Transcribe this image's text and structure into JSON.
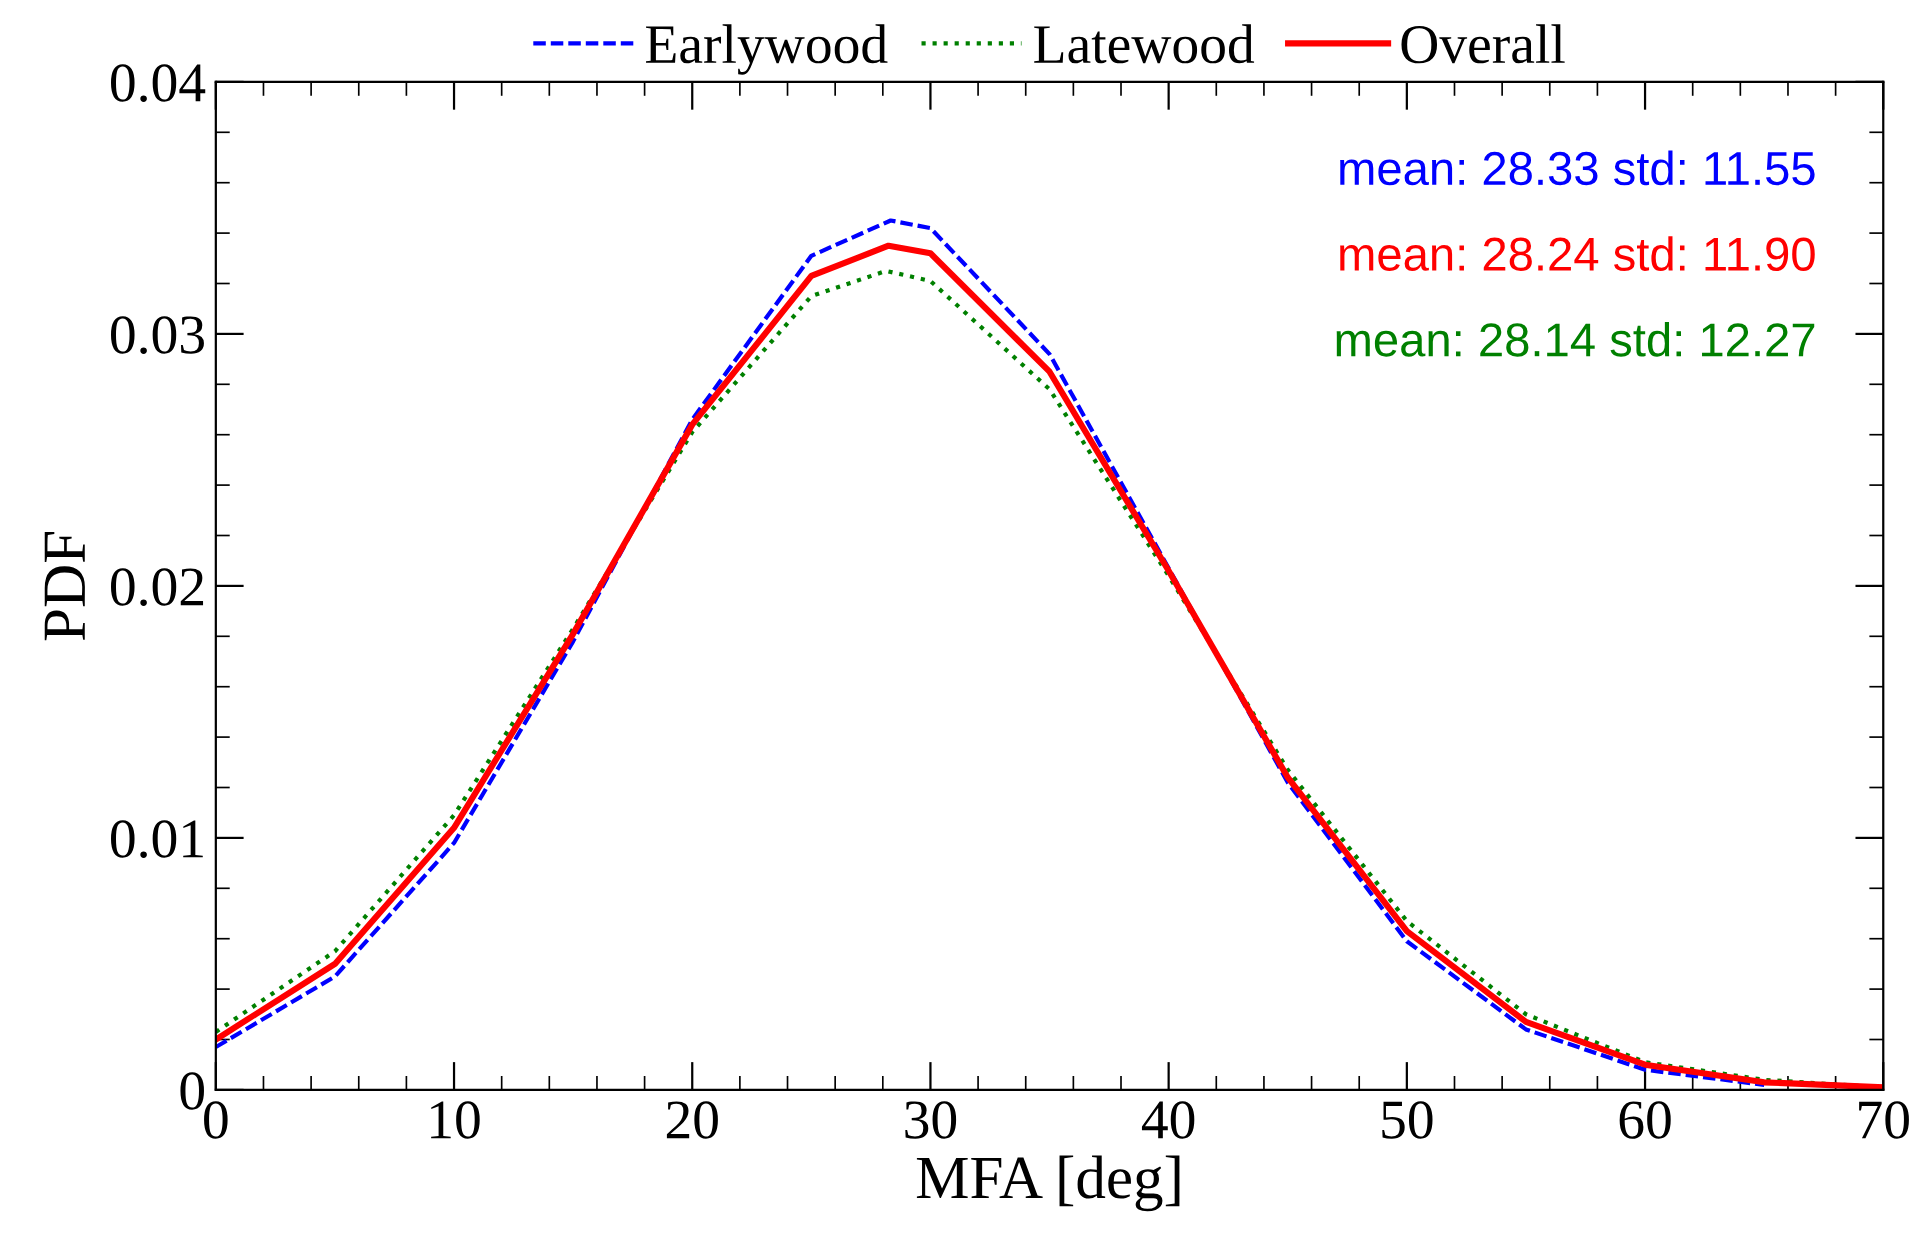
{
  "chart_data": {
    "type": "line",
    "xlabel": "MFA [deg]",
    "ylabel": "PDF",
    "xlim": [
      0,
      70
    ],
    "xticks": [
      0,
      10,
      20,
      30,
      40,
      50,
      60,
      70
    ],
    "ylim": [
      0,
      0.04
    ],
    "yticks": [
      0,
      0.01,
      0.02,
      0.03,
      0.04
    ],
    "legend": "top",
    "grid": false,
    "series": [
      {
        "name": "Earlywood",
        "color": "#0000ff",
        "line_style": "dashed",
        "x": [
          0,
          5,
          10,
          15,
          20,
          25,
          28.33,
          30,
          35,
          40,
          45,
          50,
          55,
          60,
          65
        ],
        "values": [
          0.0017,
          0.0045,
          0.0098,
          0.0178,
          0.0266,
          0.0331,
          0.0345,
          0.0342,
          0.0292,
          0.0207,
          0.0122,
          0.0059,
          0.0024,
          0.0008,
          0.0002
        ]
      },
      {
        "name": "Latewood",
        "color": "#008000",
        "line_style": "dotted",
        "x": [
          0,
          5,
          10,
          15,
          20,
          25,
          28.14,
          30,
          35,
          40,
          45,
          50,
          55,
          60,
          65,
          70
        ],
        "values": [
          0.0023,
          0.0055,
          0.0109,
          0.0183,
          0.0261,
          0.0315,
          0.0325,
          0.0321,
          0.0278,
          0.0204,
          0.0127,
          0.0067,
          0.003,
          0.0011,
          0.0004,
          0.0001
        ]
      },
      {
        "name": "Overall",
        "color": "#ff0000",
        "line_style": "solid",
        "x": [
          0,
          5,
          10,
          15,
          20,
          25,
          28.24,
          30,
          35,
          40,
          45,
          50,
          55,
          60,
          65,
          70
        ],
        "values": [
          0.002,
          0.005,
          0.0104,
          0.0181,
          0.0264,
          0.0323,
          0.0335,
          0.0332,
          0.0285,
          0.0206,
          0.0124,
          0.0063,
          0.0027,
          0.001,
          0.0003,
          0.0001
        ]
      }
    ],
    "annotations": [
      "mean: 28.33 std: 11.55",
      "mean: 28.24 std: 11.90",
      "mean: 28.14 std: 12.27"
    ]
  }
}
